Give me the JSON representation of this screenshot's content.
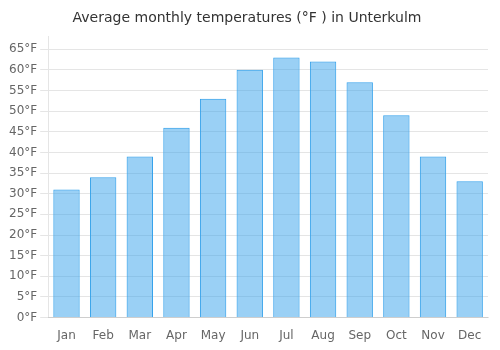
{
  "chart_data": {
    "type": "bar",
    "title": "Average monthly temperatures (°F ) in Unterkulm",
    "categories": [
      "Jan",
      "Feb",
      "Mar",
      "Apr",
      "May",
      "Jun",
      "Jul",
      "Aug",
      "Sep",
      "Oct",
      "Nov",
      "Dec"
    ],
    "values": [
      31,
      34,
      39,
      46,
      53,
      60,
      63,
      62,
      57,
      49,
      39,
      33
    ],
    "ylim": [
      0,
      68
    ],
    "yticks": [
      {
        "value": 0,
        "label": "0°F"
      },
      {
        "value": 5,
        "label": "5°F"
      },
      {
        "value": 10,
        "label": "10°F"
      },
      {
        "value": 15,
        "label": "15°F"
      },
      {
        "value": 20,
        "label": "20°F"
      },
      {
        "value": 25,
        "label": "25°F"
      },
      {
        "value": 30,
        "label": "30°F"
      },
      {
        "value": 35,
        "label": "35°F"
      },
      {
        "value": 40,
        "label": "40°F"
      },
      {
        "value": 45,
        "label": "45°F"
      },
      {
        "value": 50,
        "label": "50°F"
      },
      {
        "value": 55,
        "label": "55°F"
      },
      {
        "value": 60,
        "label": "60°F"
      },
      {
        "value": 65,
        "label": "65°F"
      }
    ],
    "grid": true
  }
}
